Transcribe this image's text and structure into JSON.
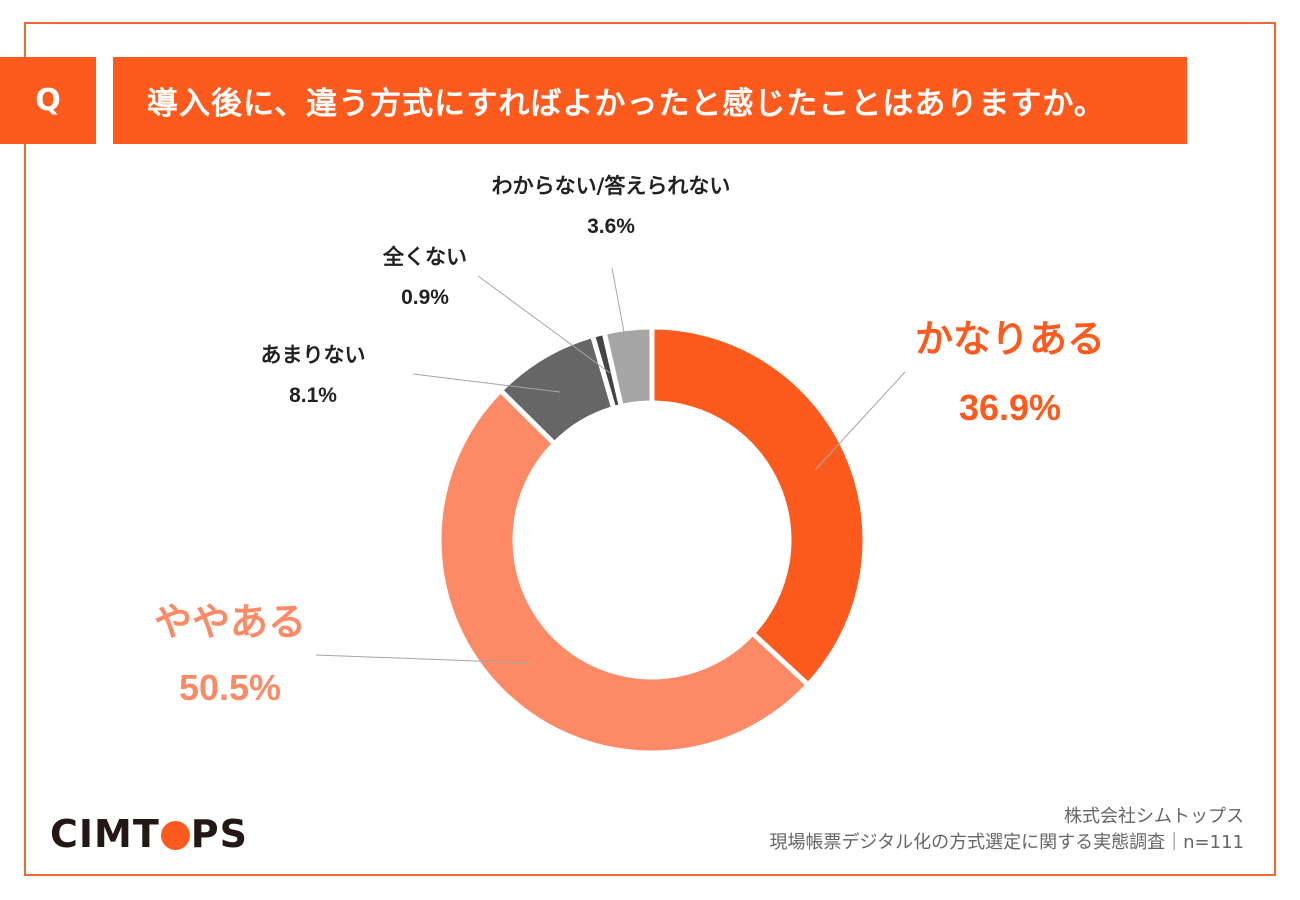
{
  "header": {
    "q_label": "Q",
    "question": "導入後に、違う方式にすればよかったと感じたことはありますか。"
  },
  "chart_data": {
    "type": "pie",
    "donut": true,
    "title": "導入後に、違う方式にすればよかったと感じたことはありますか。",
    "slices": [
      {
        "label": "かなりある",
        "value": 36.9,
        "value_text": "36.9%",
        "color": "#fd5a1e",
        "label_color": "#fd5a1e"
      },
      {
        "label": "ややある",
        "value": 50.5,
        "value_text": "50.5%",
        "color": "#fd8a66",
        "label_color": "#fd8a66"
      },
      {
        "label": "あまりない",
        "value": 8.1,
        "value_text": "8.1%",
        "color": "#666666",
        "label_color": "#222222"
      },
      {
        "label": "全くない",
        "value": 0.9,
        "value_text": "0.9%",
        "color": "#444444",
        "label_color": "#222222"
      },
      {
        "label": "わからない/答えられない",
        "value": 3.6,
        "value_text": "3.6%",
        "color": "#a6a6a6",
        "label_color": "#222222"
      }
    ]
  },
  "footer": {
    "company": "株式会社シムトップス",
    "survey": "現場帳票デジタル化の方式選定に関する実態調査｜n=111"
  },
  "logo": {
    "text_before": "CIMT",
    "text_after": "PS"
  },
  "colors": {
    "accent": "#fd5a1e",
    "frame": "#f06a35"
  }
}
